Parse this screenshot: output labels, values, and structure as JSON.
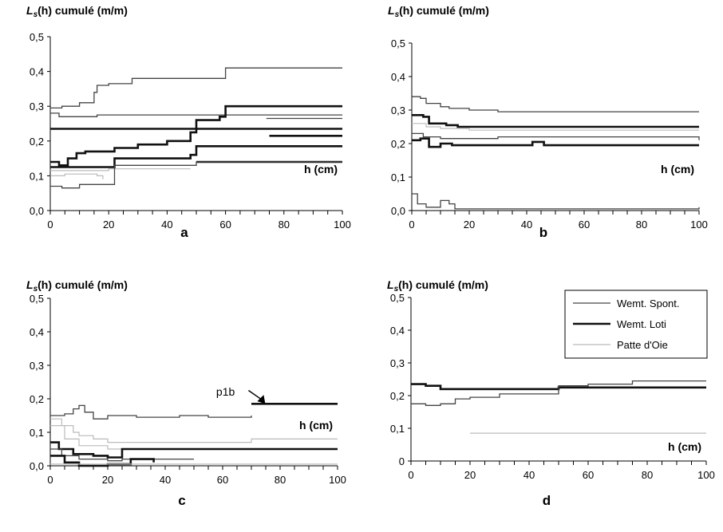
{
  "colors": {
    "axis": "#000000",
    "spont": "#444444",
    "loti": "#111111",
    "patte": "#bbbbbb"
  },
  "legend": {
    "entries": [
      {
        "label": "Wemt. Spont.",
        "style": "spont"
      },
      {
        "label": "Wemt. Loti",
        "style": "loti"
      },
      {
        "label": "Patte d'Oie",
        "style": "patte"
      }
    ]
  },
  "chart_data": [
    {
      "panel": "a",
      "type": "line",
      "title": "",
      "ylabel_main": "L",
      "ylabel_sub": "s",
      "ylabel_rest": "(h) cumulé (m/m)",
      "xlabel": "h (cm)",
      "xlim": [
        0,
        100
      ],
      "ylim": [
        0,
        0.5
      ],
      "xticks": [
        "0",
        "20",
        "40",
        "60",
        "80",
        "100"
      ],
      "yticks": [
        "0,0",
        "0,1",
        "0,2",
        "0,3",
        "0,4",
        "0,5"
      ],
      "series": [
        {
          "style": "spont",
          "points": [
            [
              0,
              0.295
            ],
            [
              4,
              0.3
            ],
            [
              8,
              0.3
            ],
            [
              10,
              0.31
            ],
            [
              14,
              0.31
            ],
            [
              15,
              0.34
            ],
            [
              16,
              0.36
            ],
            [
              20,
              0.365
            ],
            [
              28,
              0.38
            ],
            [
              50,
              0.38
            ],
            [
              60,
              0.41
            ],
            [
              100,
              0.41
            ]
          ]
        },
        {
          "style": "spont",
          "points": [
            [
              0,
              0.28
            ],
            [
              3,
              0.27
            ],
            [
              10,
              0.27
            ],
            [
              15,
              0.27
            ],
            [
              16,
              0.275
            ],
            [
              100,
              0.275
            ]
          ]
        },
        {
          "style": "spont",
          "points": [
            [
              74,
              0.265
            ],
            [
              100,
              0.265
            ]
          ]
        },
        {
          "style": "loti",
          "points": [
            [
              0,
              0.235
            ],
            [
              100,
              0.235
            ]
          ]
        },
        {
          "style": "loti",
          "points": [
            [
              75,
              0.215
            ],
            [
              100,
              0.215
            ]
          ]
        },
        {
          "style": "loti",
          "points": [
            [
              0,
              0.14
            ],
            [
              3,
              0.13
            ],
            [
              6,
              0.15
            ],
            [
              9,
              0.165
            ],
            [
              12,
              0.17
            ],
            [
              20,
              0.17
            ],
            [
              22,
              0.18
            ],
            [
              30,
              0.19
            ],
            [
              40,
              0.2
            ],
            [
              48,
              0.225
            ],
            [
              50,
              0.26
            ],
            [
              58,
              0.27
            ],
            [
              60,
              0.3
            ],
            [
              100,
              0.3
            ]
          ]
        },
        {
          "style": "loti",
          "points": [
            [
              0,
              0.125
            ],
            [
              20,
              0.125
            ],
            [
              22,
              0.15
            ],
            [
              48,
              0.16
            ],
            [
              50,
              0.185
            ],
            [
              100,
              0.185
            ]
          ]
        },
        {
          "style": "loti",
          "points": [
            [
              50,
              0.14
            ],
            [
              100,
              0.14
            ]
          ]
        },
        {
          "style": "patte",
          "points": [
            [
              0,
              0.115
            ],
            [
              20,
              0.12
            ],
            [
              48,
              0.12
            ]
          ]
        },
        {
          "style": "patte",
          "points": [
            [
              0,
              0.1
            ],
            [
              5,
              0.105
            ],
            [
              16,
              0.1
            ],
            [
              18,
              0.09
            ]
          ]
        },
        {
          "style": "spont",
          "points": [
            [
              0,
              0.07
            ],
            [
              4,
              0.065
            ],
            [
              8,
              0.065
            ],
            [
              10,
              0.075
            ],
            [
              20,
              0.075
            ],
            [
              22,
              0.13
            ],
            [
              50,
              0.14
            ],
            [
              100,
              0.14
            ]
          ]
        }
      ]
    },
    {
      "panel": "b",
      "type": "line",
      "title": "",
      "ylabel_main": "L",
      "ylabel_sub": "s",
      "ylabel_rest": "(h) cumulé (m/m)",
      "xlabel": "h (cm)",
      "xlim": [
        0,
        100
      ],
      "ylim": [
        0,
        0.5
      ],
      "xticks": [
        "0",
        "20",
        "40",
        "60",
        "80",
        "100"
      ],
      "yticks": [
        "0,0",
        "0,1",
        "0,2",
        "0,3",
        "0,4",
        "0,5"
      ],
      "series": [
        {
          "style": "spont",
          "points": [
            [
              0,
              0.34
            ],
            [
              3,
              0.335
            ],
            [
              5,
              0.32
            ],
            [
              10,
              0.31
            ],
            [
              13,
              0.305
            ],
            [
              20,
              0.3
            ],
            [
              30,
              0.295
            ],
            [
              100,
              0.295
            ]
          ]
        },
        {
          "style": "loti",
          "points": [
            [
              0,
              0.285
            ],
            [
              4,
              0.28
            ],
            [
              6,
              0.26
            ],
            [
              12,
              0.255
            ],
            [
              16,
              0.25
            ],
            [
              100,
              0.25
            ]
          ]
        },
        {
          "style": "patte",
          "points": [
            [
              0,
              0.26
            ],
            [
              5,
              0.25
            ],
            [
              10,
              0.245
            ],
            [
              20,
              0.24
            ],
            [
              100,
              0.24
            ]
          ]
        },
        {
          "style": "spont",
          "points": [
            [
              0,
              0.23
            ],
            [
              4,
              0.22
            ],
            [
              10,
              0.215
            ],
            [
              30,
              0.22
            ],
            [
              100,
              0.21
            ]
          ]
        },
        {
          "style": "loti",
          "points": [
            [
              0,
              0.21
            ],
            [
              3,
              0.215
            ],
            [
              6,
              0.19
            ],
            [
              10,
              0.2
            ],
            [
              14,
              0.195
            ],
            [
              40,
              0.195
            ],
            [
              42,
              0.205
            ],
            [
              46,
              0.195
            ],
            [
              100,
              0.195
            ]
          ]
        },
        {
          "style": "spont",
          "points": [
            [
              0,
              0.05
            ],
            [
              2,
              0.02
            ],
            [
              5,
              0.01
            ],
            [
              9,
              0.01
            ],
            [
              10,
              0.03
            ],
            [
              13,
              0.02
            ],
            [
              15,
              0.005
            ],
            [
              80,
              0.005
            ],
            [
              100,
              0.01
            ]
          ]
        }
      ]
    },
    {
      "panel": "c",
      "type": "line",
      "title": "",
      "ylabel_main": "L",
      "ylabel_sub": "s",
      "ylabel_rest": "(h) cumulé (m/m)",
      "xlabel": "h (cm)",
      "xlim": [
        0,
        100
      ],
      "ylim": [
        0,
        0.5
      ],
      "xticks": [
        "0",
        "20",
        "40",
        "60",
        "80",
        "100"
      ],
      "yticks": [
        "0,0",
        "0,1",
        "0,2",
        "0,3",
        "0,4",
        "0,5"
      ],
      "annotation": {
        "text": "p1b"
      },
      "series": [
        {
          "style": "spont",
          "points": [
            [
              0,
              0.15
            ],
            [
              5,
              0.155
            ],
            [
              8,
              0.17
            ],
            [
              10,
              0.18
            ],
            [
              12,
              0.16
            ],
            [
              15,
              0.14
            ],
            [
              20,
              0.15
            ],
            [
              30,
              0.145
            ],
            [
              45,
              0.15
            ],
            [
              55,
              0.145
            ],
            [
              70,
              0.15
            ]
          ]
        },
        {
          "style": "loti",
          "points": [
            [
              70,
              0.185
            ],
            [
              100,
              0.185
            ]
          ]
        },
        {
          "style": "patte",
          "points": [
            [
              0,
              0.14
            ],
            [
              4,
              0.12
            ],
            [
              8,
              0.1
            ],
            [
              10,
              0.09
            ],
            [
              15,
              0.08
            ],
            [
              20,
              0.07
            ],
            [
              60,
              0.07
            ],
            [
              70,
              0.08
            ],
            [
              100,
              0.08
            ]
          ]
        },
        {
          "style": "patte",
          "points": [
            [
              0,
              0.12
            ],
            [
              5,
              0.08
            ],
            [
              10,
              0.06
            ],
            [
              20,
              0.05
            ],
            [
              25,
              0.05
            ]
          ]
        },
        {
          "style": "loti",
          "points": [
            [
              0,
              0.07
            ],
            [
              3,
              0.05
            ],
            [
              8,
              0.035
            ],
            [
              15,
              0.03
            ],
            [
              20,
              0.025
            ],
            [
              25,
              0.05
            ],
            [
              100,
              0.05
            ]
          ]
        },
        {
          "style": "spont",
          "points": [
            [
              0,
              0.05
            ],
            [
              4,
              0.03
            ],
            [
              10,
              0.02
            ],
            [
              20,
              0.015
            ],
            [
              25,
              0.02
            ],
            [
              50,
              0.02
            ]
          ]
        },
        {
          "style": "loti",
          "points": [
            [
              0,
              0.03
            ],
            [
              5,
              0.01
            ],
            [
              10,
              0.0
            ],
            [
              20,
              0.005
            ],
            [
              28,
              0.02
            ],
            [
              35,
              0.02
            ],
            [
              36,
              0.01
            ]
          ]
        },
        {
          "style": "patte",
          "points": [
            [
              0,
              0.005
            ],
            [
              100,
              0.005
            ]
          ]
        }
      ]
    },
    {
      "panel": "d",
      "type": "line",
      "title": "",
      "ylabel_main": "L",
      "ylabel_sub": "s",
      "ylabel_rest": "(h) cumulé (m/m)",
      "xlabel": "h (cm)",
      "xlim": [
        0,
        100
      ],
      "ylim": [
        0,
        0.5
      ],
      "xticks": [
        "0",
        "20",
        "40",
        "60",
        "80",
        "100"
      ],
      "yticks": [
        "0",
        "0,1",
        "0,2",
        "0,3",
        "0,4",
        "0,5"
      ],
      "legend": "top-right",
      "series": [
        {
          "style": "loti",
          "points": [
            [
              0,
              0.235
            ],
            [
              5,
              0.23
            ],
            [
              10,
              0.22
            ],
            [
              40,
              0.22
            ],
            [
              50,
              0.225
            ],
            [
              80,
              0.225
            ],
            [
              100,
              0.225
            ]
          ]
        },
        {
          "style": "spont",
          "points": [
            [
              0,
              0.175
            ],
            [
              5,
              0.17
            ],
            [
              10,
              0.175
            ],
            [
              15,
              0.19
            ],
            [
              20,
              0.195
            ],
            [
              30,
              0.205
            ],
            [
              50,
              0.23
            ],
            [
              60,
              0.235
            ],
            [
              75,
              0.245
            ],
            [
              100,
              0.245
            ]
          ]
        },
        {
          "style": "patte",
          "points": [
            [
              20,
              0.085
            ],
            [
              100,
              0.085
            ]
          ]
        }
      ]
    }
  ]
}
